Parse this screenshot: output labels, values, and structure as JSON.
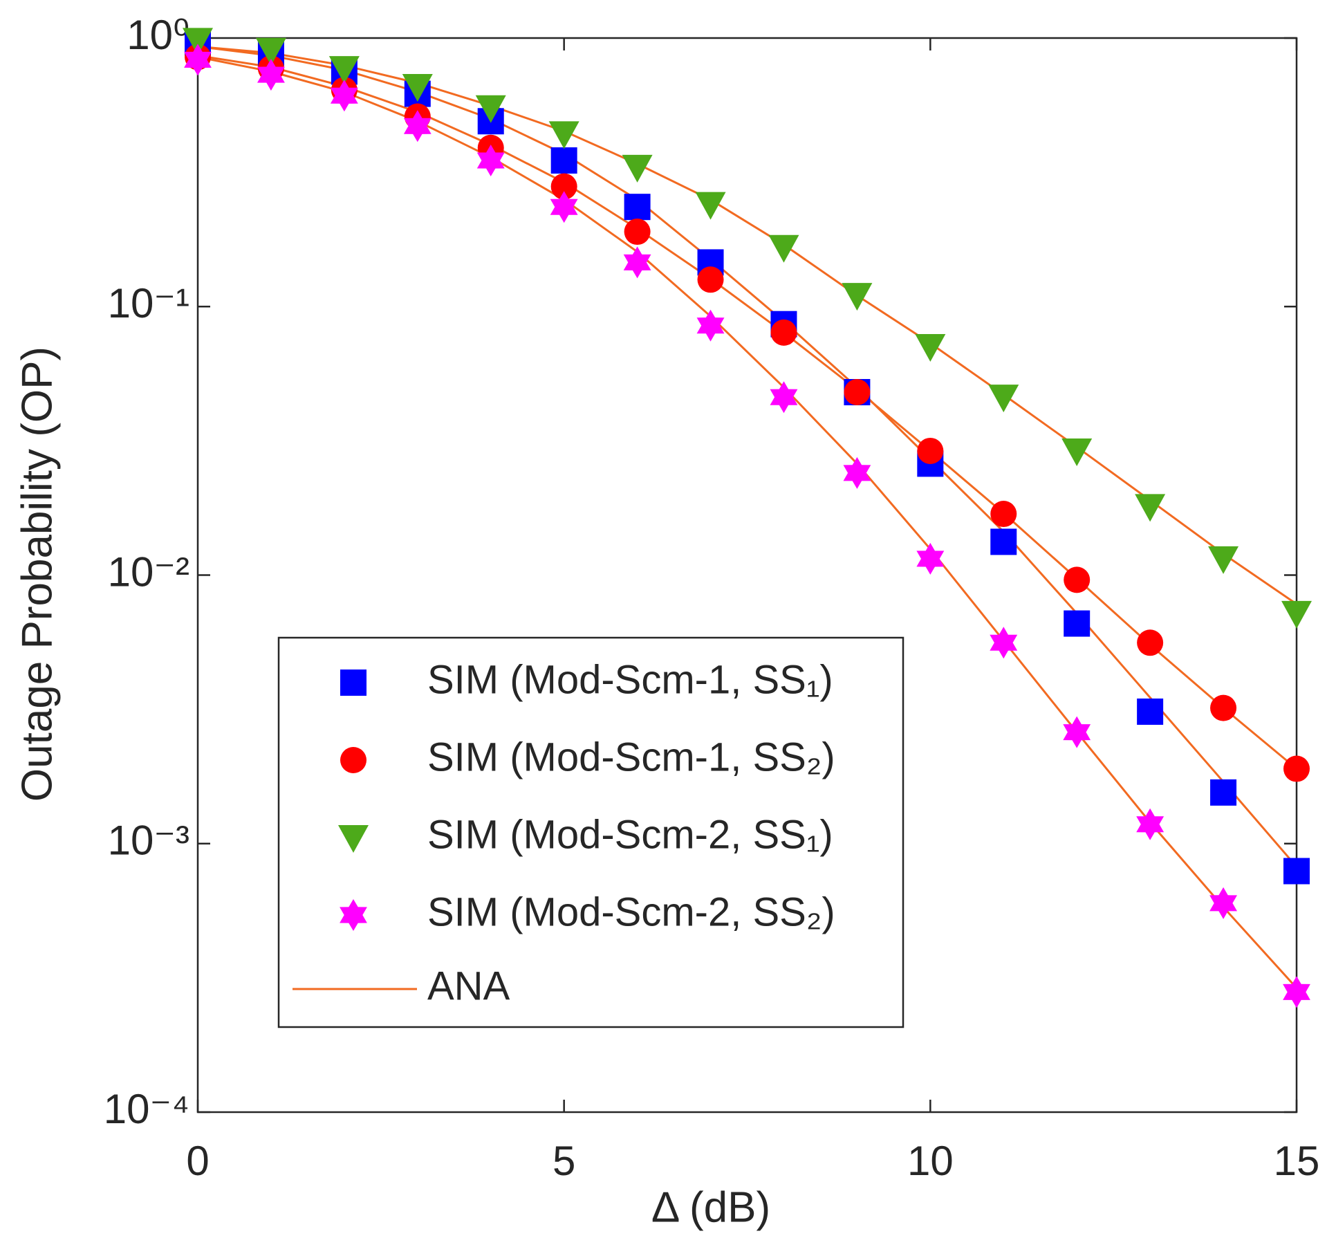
{
  "chart_data": {
    "type": "line",
    "xlabel": "Δ (dB)",
    "ylabel": "Outage Probability (OP)",
    "x": [
      0,
      1,
      2,
      3,
      4,
      5,
      6,
      7,
      8,
      9,
      10,
      11,
      12,
      13,
      14,
      15
    ],
    "xlim": [
      0,
      15
    ],
    "xticks": [
      0,
      5,
      10,
      15
    ],
    "ylim": [
      0.0001,
      1
    ],
    "log_y": true,
    "yticks": [
      {
        "value": 0.0001,
        "label": "10⁻⁴"
      },
      {
        "value": 0.001,
        "label": "10⁻³"
      },
      {
        "value": 0.01,
        "label": "10⁻²"
      },
      {
        "value": 0.1,
        "label": "10⁻¹"
      },
      {
        "value": 1,
        "label": "10⁰"
      }
    ],
    "legend": "lower-left",
    "series": [
      {
        "name": "SIM (Mod-Scm-1, SS₁)",
        "color": "#0000ff",
        "marker": "square",
        "values": [
          0.96,
          0.88,
          0.75,
          0.62,
          0.49,
          0.35,
          0.235,
          0.146,
          0.086,
          0.048,
          0.026,
          0.0133,
          0.0066,
          0.0031,
          0.00155,
          0.00079
        ]
      },
      {
        "name": "SIM (Mod-Scm-1, SS₂)",
        "color": "#ff0000",
        "marker": "circle",
        "values": [
          0.85,
          0.77,
          0.64,
          0.51,
          0.39,
          0.28,
          0.19,
          0.126,
          0.08,
          0.048,
          0.029,
          0.0169,
          0.0096,
          0.0056,
          0.0032,
          0.0019
        ]
      },
      {
        "name": "SIM (Mod-Scm-2, SS₁)",
        "color": "#4daa1a",
        "marker": "triangle-down",
        "values": [
          0.98,
          0.9,
          0.77,
          0.66,
          0.55,
          0.44,
          0.33,
          0.24,
          0.166,
          0.11,
          0.071,
          0.046,
          0.029,
          0.018,
          0.0115,
          0.0072
        ]
      },
      {
        "name": "SIM (Mod-Scm-2, SS₂)",
        "color": "#ff00ff",
        "marker": "hexagram",
        "values": [
          0.83,
          0.73,
          0.61,
          0.47,
          0.35,
          0.235,
          0.146,
          0.085,
          0.046,
          0.024,
          0.0115,
          0.0056,
          0.0026,
          0.00118,
          0.0006,
          0.00028
        ]
      }
    ],
    "analysis": {
      "name": "ANA",
      "color": "#f26a21",
      "curves": [
        [
          0.93,
          0.86,
          0.76,
          0.63,
          0.5,
          0.37,
          0.25,
          0.15,
          0.088,
          0.05,
          0.027,
          0.0145,
          0.0072,
          0.0035,
          0.0017,
          0.00082
        ],
        [
          0.86,
          0.78,
          0.66,
          0.53,
          0.4,
          0.29,
          0.195,
          0.127,
          0.08,
          0.049,
          0.029,
          0.017,
          0.0097,
          0.0055,
          0.0032,
          0.0019
        ],
        [
          0.93,
          0.88,
          0.79,
          0.68,
          0.56,
          0.45,
          0.34,
          0.25,
          0.17,
          0.11,
          0.073,
          0.047,
          0.03,
          0.019,
          0.012,
          0.0078
        ],
        [
          0.85,
          0.75,
          0.63,
          0.49,
          0.36,
          0.25,
          0.16,
          0.092,
          0.05,
          0.026,
          0.0125,
          0.0057,
          0.0026,
          0.0012,
          0.00058,
          0.00029
        ]
      ]
    }
  }
}
